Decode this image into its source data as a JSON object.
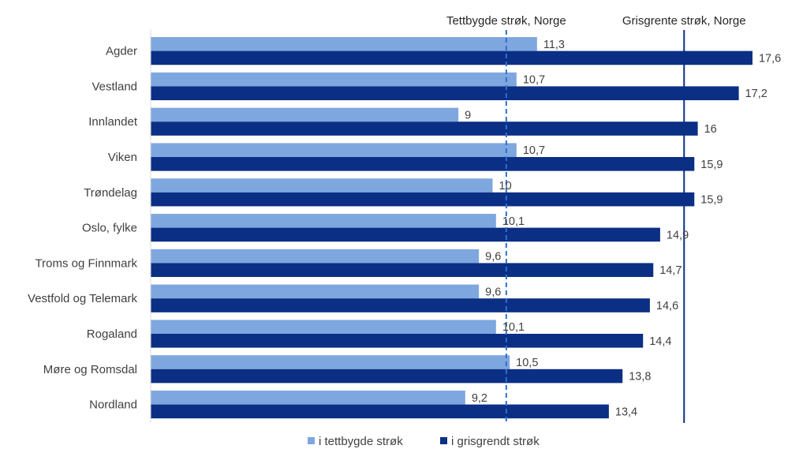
{
  "chart_data": {
    "type": "bar",
    "orientation": "horizontal",
    "categories": [
      "Agder",
      "Vestland",
      "Innlandet",
      "Viken",
      "Trøndelag",
      "Oslo, fylke",
      "Troms og Finnmark",
      "Vestfold og Telemark",
      "Rogaland",
      "Møre og Romsdal",
      "Nordland"
    ],
    "series": [
      {
        "name": "i tettbygde strøk",
        "color": "#7fa7df",
        "values": [
          11.3,
          10.7,
          9,
          10.7,
          10,
          10.1,
          9.6,
          9.6,
          10.1,
          10.5,
          9.2
        ],
        "value_labels": [
          "11,3",
          "10,7",
          "9",
          "10,7",
          "10",
          "10,1",
          "9,6",
          "9,6",
          "10,1",
          "10,5",
          "9,2"
        ]
      },
      {
        "name": "i grisgrendt strøk",
        "color": "#0b2f84",
        "values": [
          17.6,
          17.2,
          16,
          15.9,
          15.9,
          14.9,
          14.7,
          14.6,
          14.4,
          13.8,
          13.4
        ],
        "value_labels": [
          "17,6",
          "17,2",
          "16",
          "15,9",
          "15,9",
          "14,9",
          "14,7",
          "14,6",
          "14,4",
          "13,8",
          "13,4"
        ]
      }
    ],
    "reference_lines": [
      {
        "name": "Tettbygde strøk, Norge",
        "value": 10.4,
        "style": "dashed",
        "color": "#2f6ed0"
      },
      {
        "name": "Grisgrente strøk, Norge",
        "value": 15.6,
        "style": "solid",
        "color": "#0b2f84"
      }
    ],
    "xlim": [
      0,
      18
    ],
    "grid": false,
    "legend_position": "bottom"
  }
}
